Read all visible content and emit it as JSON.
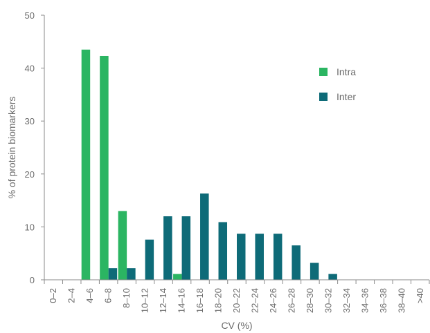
{
  "chart_data": {
    "type": "bar",
    "xlabel": "CV (%)",
    "ylabel": "% of protein biomarkers",
    "ylim": [
      0,
      50
    ],
    "yticks": [
      0,
      10,
      20,
      30,
      40,
      50
    ],
    "grid": false,
    "legend_position": "top-right",
    "categories": [
      "0–2",
      "2–4",
      "4–6",
      "6–8",
      "8–10",
      "10–12",
      "12–14",
      "14–16",
      "16–18",
      "18–20",
      "20–22",
      "22–24",
      "24–26",
      "26–28",
      "28–30",
      "30–32",
      "32–34",
      "34–36",
      "36–38",
      "38–40",
      ">40"
    ],
    "series": [
      {
        "name": "Intra",
        "color": "#2bb562",
        "values": [
          0,
          0,
          43.5,
          42.3,
          13,
          0,
          0,
          1.1,
          0,
          0,
          0,
          0,
          0,
          0,
          0,
          0,
          0,
          0,
          0,
          0,
          0
        ]
      },
      {
        "name": "Inter",
        "color": "#0e6b78",
        "values": [
          0,
          0,
          0,
          2.2,
          2.2,
          7.6,
          12,
          12,
          16.3,
          10.9,
          8.7,
          8.7,
          8.7,
          6.5,
          3.2,
          1.1,
          0,
          0,
          0,
          0,
          0
        ]
      }
    ]
  }
}
